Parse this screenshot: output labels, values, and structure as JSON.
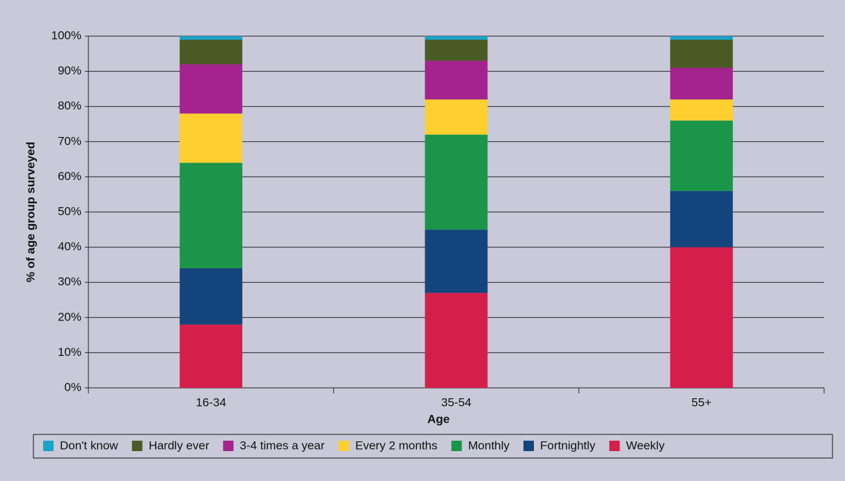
{
  "chart_data": {
    "type": "stacked-bar",
    "x_label": "Age",
    "y_label": "% of age group surveyed",
    "categories": [
      "16-34",
      "35-54",
      "55+"
    ],
    "series": [
      {
        "name": "Weekly",
        "color": "#d41f4b",
        "values": [
          18,
          27,
          40
        ]
      },
      {
        "name": "Fortnightly",
        "color": "#13447c",
        "values": [
          16,
          18,
          16
        ]
      },
      {
        "name": "Monthly",
        "color": "#1a9549",
        "values": [
          30,
          27,
          20
        ]
      },
      {
        "name": "Every 2 months",
        "color": "#fdd030",
        "values": [
          14,
          10,
          6
        ]
      },
      {
        "name": "3-4 times a year",
        "color": "#a4238e",
        "values": [
          14,
          11,
          9
        ]
      },
      {
        "name": "Hardly ever",
        "color": "#4a5b25",
        "values": [
          7,
          6,
          8
        ]
      },
      {
        "name": "Don't know",
        "color": "#1aa3c8",
        "values": [
          1,
          1,
          1
        ]
      }
    ],
    "ylim": [
      0,
      100
    ],
    "yticks": [
      {
        "value": 0,
        "label": "0%"
      },
      {
        "value": 10,
        "label": "10%"
      },
      {
        "value": 20,
        "label": "20%"
      },
      {
        "value": 30,
        "label": "30%"
      },
      {
        "value": 40,
        "label": "40%"
      },
      {
        "value": 50,
        "label": "50%"
      },
      {
        "value": 60,
        "label": "60%"
      },
      {
        "value": 70,
        "label": "70%"
      },
      {
        "value": 80,
        "label": "80%"
      },
      {
        "value": 90,
        "label": "90%"
      },
      {
        "value": 100,
        "label": "100%"
      }
    ],
    "grid": true,
    "legend": "bottom"
  }
}
